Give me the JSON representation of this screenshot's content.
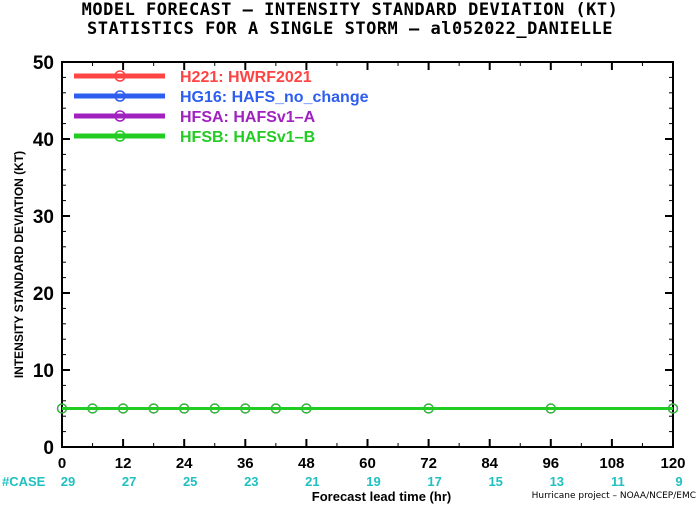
{
  "title_line1": "MODEL FORECAST – INTENSITY STANDARD DEVIATION (KT)",
  "title_line2": "STATISTICS FOR A SINGLE STORM – al052022_DANIELLE",
  "credit": "Hurricane project – NOAA/NCEP/EMC",
  "chart_data": {
    "type": "line",
    "title": "MODEL FORECAST – INTENSITY STANDARD DEVIATION (KT)",
    "subtitle": "STATISTICS FOR A SINGLE STORM – al052022_DANIELLE",
    "xlabel": "Forecast lead time (hr)",
    "ylabel": "INTENSITY STANDARD DEVIATION (KT)",
    "xlim": [
      0,
      120
    ],
    "ylim": [
      0,
      50
    ],
    "xticks": [
      0,
      12,
      24,
      36,
      48,
      60,
      72,
      84,
      96,
      108,
      120
    ],
    "yticks": [
      0,
      10,
      20,
      30,
      40,
      50
    ],
    "grid": false,
    "legend_position": "top-left",
    "case_label": "#CASE",
    "case_counts": [
      29,
      27,
      25,
      23,
      21,
      19,
      17,
      15,
      13,
      11,
      9
    ],
    "case_color": "#20c0c0",
    "x": [
      0,
      6,
      12,
      18,
      24,
      30,
      36,
      42,
      48,
      72,
      96,
      120
    ],
    "series": [
      {
        "name": "H221: HWRF2021",
        "color": "#ff4444",
        "values": [
          5,
          5,
          5,
          5,
          5,
          5,
          5,
          5,
          5,
          5,
          5,
          5
        ]
      },
      {
        "name": "HG16: HAFS_no_change",
        "color": "#2d5ef0",
        "values": [
          5,
          5,
          5,
          5,
          5,
          5,
          5,
          5,
          5,
          5,
          5,
          5
        ]
      },
      {
        "name": "HFSA: HAFSv1–A",
        "color": "#a020c0",
        "values": [
          5,
          5,
          5,
          5,
          5,
          5,
          5,
          5,
          5,
          5,
          5,
          5
        ]
      },
      {
        "name": "HFSB: HAFSv1–B",
        "color": "#22cc22",
        "values": [
          5,
          5,
          5,
          5,
          5,
          5,
          5,
          5,
          5,
          5,
          5,
          5
        ]
      }
    ]
  }
}
